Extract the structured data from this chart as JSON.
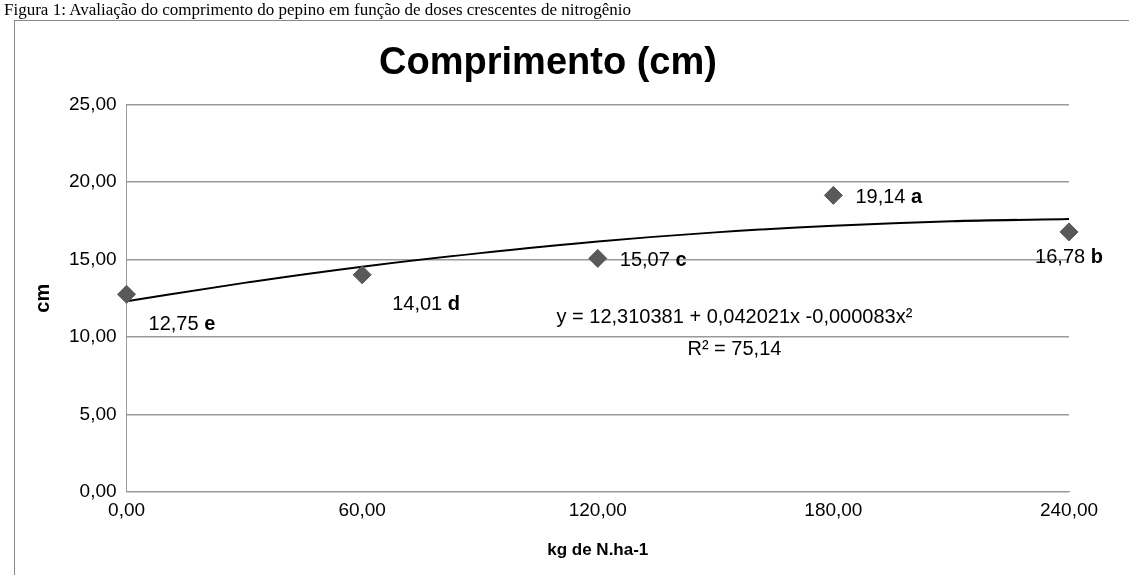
{
  "chart_data": {
    "type": "scatter",
    "title": "Comprimento (cm)",
    "xlabel": "kg de N.ha-1",
    "ylabel": "cm",
    "annotations": [
      "Figura 1: Avaliação do comprimento do pepino em função de doses crescentes de nitrogênio",
      "y = 12,310381 + 0,042021x -0,000083x²",
      "R² = 75,14"
    ],
    "series": [
      {
        "color": "#595959",
        "x": [
          0,
          60,
          120,
          180,
          240
        ],
        "values": [
          12.75,
          14.01,
          15.07,
          19.14,
          16.78
        ],
        "value_labels": [
          "12,75 e",
          "14,01 d",
          "15,07 c",
          "19,14 a",
          "16,78 b"
        ]
      },
      {
        "type": "line",
        "color": "#000000",
        "marker": "none",
        "x": [
          0,
          30,
          60,
          90,
          120,
          150,
          180,
          210,
          240
        ],
        "values": [
          12.31,
          13.49,
          14.53,
          15.41,
          16.16,
          16.75,
          17.18,
          17.47,
          17.61
        ]
      }
    ],
    "marker": "diamond",
    "legend": false,
    "grid": "y",
    "xlim": [
      0,
      240
    ],
    "xticks": [
      {
        "value": 0,
        "label": "0,00"
      },
      {
        "value": 60,
        "label": "60,00"
      },
      {
        "value": 120,
        "label": "120,00"
      },
      {
        "value": 180,
        "label": "180,00"
      },
      {
        "value": 240,
        "label": "240,00"
      }
    ],
    "ylim": [
      0,
      25
    ],
    "yticks": [
      {
        "value": 0,
        "label": "0,00"
      },
      {
        "value": 5,
        "label": "5,00"
      },
      {
        "value": 10,
        "label": "10,00"
      },
      {
        "value": 15,
        "label": "15,00"
      },
      {
        "value": 20,
        "label": "20,00"
      },
      {
        "value": 25,
        "label": "25,00"
      }
    ]
  }
}
